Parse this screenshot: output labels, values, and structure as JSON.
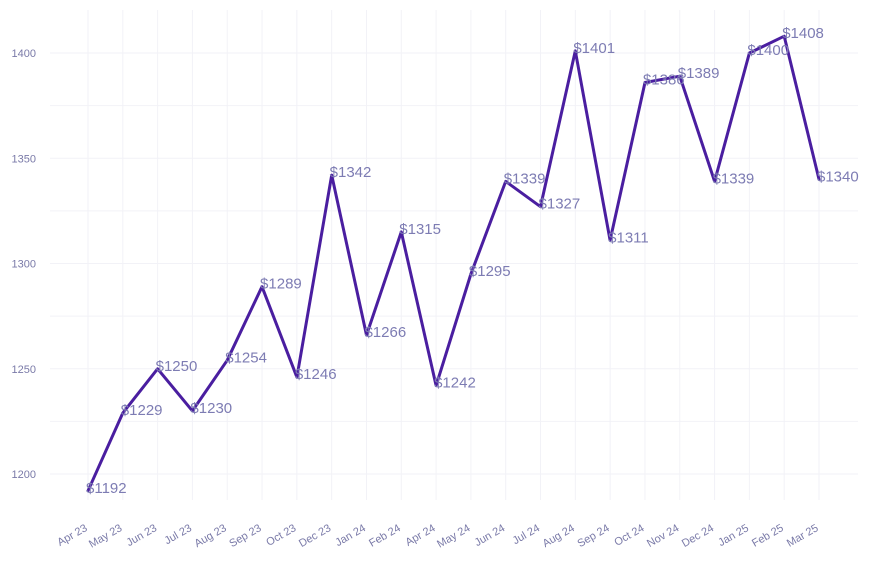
{
  "chart_data": {
    "type": "line",
    "title": "",
    "xlabel": "",
    "ylabel": "",
    "categories": [
      "Apr 23",
      "May 23",
      "Jun 23",
      "Jul 23",
      "Aug 23",
      "Sep 23",
      "Oct 23",
      "Dec 23",
      "Jan 24",
      "Feb 24",
      "Apr 24",
      "May 24",
      "Jun 24",
      "Jul 24",
      "Aug 24",
      "Sep 24",
      "Oct 24",
      "Nov 24",
      "Dec 24",
      "Jan 25",
      "Feb 25",
      "Mar 25"
    ],
    "values": [
      1192,
      1229,
      1250,
      1230,
      1254,
      1289,
      1246,
      1342,
      1266,
      1315,
      1242,
      1295,
      1339,
      1327,
      1401,
      1311,
      1386,
      1389,
      1339,
      1400,
      1408,
      1340
    ],
    "data_labels": [
      "$1192",
      "$1229",
      "$1250",
      "$1230",
      "$1254",
      "$1289",
      "$1246",
      "$1342",
      "$1266",
      "$1315",
      "$1242",
      "$1295",
      "$1339",
      "$1327",
      "$1401",
      "$1311",
      "$1386",
      "$1389",
      "$1339",
      "$1400",
      "$1408",
      "$1340"
    ],
    "yticks": [
      1200,
      1250,
      1300,
      1350,
      1400
    ],
    "ylim": [
      1185,
      1420
    ],
    "grid": true,
    "line_color": "#4a1ea0"
  }
}
